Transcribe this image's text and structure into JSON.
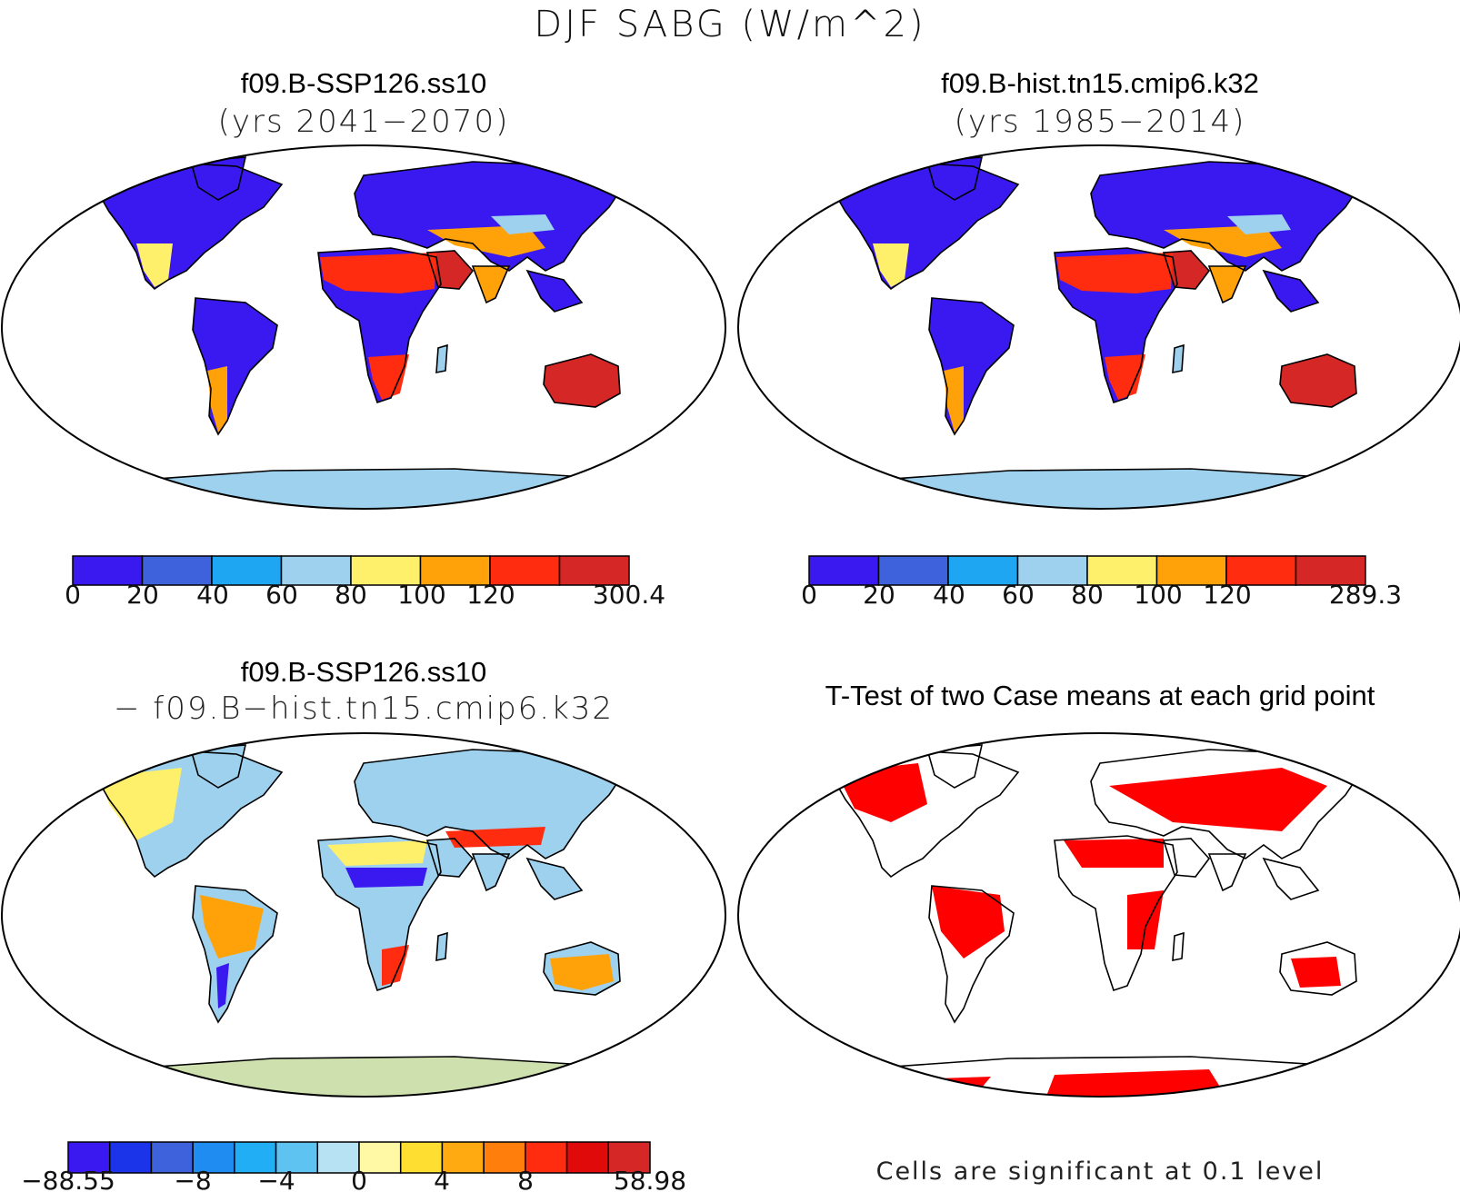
{
  "figure": {
    "title": "DJF SABG (W/m^2)"
  },
  "panels": {
    "case1": {
      "title": "f09.B-SSP126.ss10",
      "subtitle": "(yrs 2041−2070)",
      "colorbar": {
        "colors": [
          "#3a18f0",
          "#3d62db",
          "#1ea6f2",
          "#9dd1ee",
          "#fff06c",
          "#ffa20a",
          "#ff2c10",
          "#d62727"
        ],
        "ticks": [
          "0",
          "20",
          "40",
          "60",
          "80",
          "100",
          "120",
          "300.4"
        ]
      }
    },
    "case2": {
      "title": "f09.B-hist.tn15.cmip6.k32",
      "subtitle": "(yrs 1985−2014)",
      "colorbar": {
        "colors": [
          "#3a18f0",
          "#3d62db",
          "#1ea6f2",
          "#9dd1ee",
          "#fff06c",
          "#ffa20a",
          "#ff2c10",
          "#d62727"
        ],
        "ticks": [
          "0",
          "20",
          "40",
          "60",
          "80",
          "100",
          "120",
          "289.3"
        ]
      }
    },
    "diff": {
      "title": "f09.B-SSP126.ss10",
      "subtitle": "− f09.B−hist.tn15.cmip6.k32",
      "colorbar": {
        "colors": [
          "#3a18f0",
          "#1b34ea",
          "#3d62db",
          "#1e8cf0",
          "#21aef4",
          "#5fc3f2",
          "#b7e2f3",
          "#fff9a6",
          "#ffde32",
          "#ffaa10",
          "#ff7e0c",
          "#ff2c10",
          "#e10a0a",
          "#d62727"
        ],
        "ticks": [
          "−88.55",
          "−8",
          "−4",
          "0",
          "4",
          "8",
          "58.98"
        ]
      }
    },
    "ttest": {
      "title": "T-Test of two Case means at each grid point",
      "footnote": "Cells are significant at 0.1 level",
      "significant_color": "#ff0000"
    }
  },
  "map_colors": {
    "ocean": "#ffffff",
    "coastline": "#000000",
    "low": "#3a18f0",
    "mid": "#1ea6f2",
    "light": "#9dd1ee",
    "yellow": "#fff06c",
    "orange": "#ffa20a",
    "red": "#ff2c10",
    "darkred": "#d62727"
  }
}
